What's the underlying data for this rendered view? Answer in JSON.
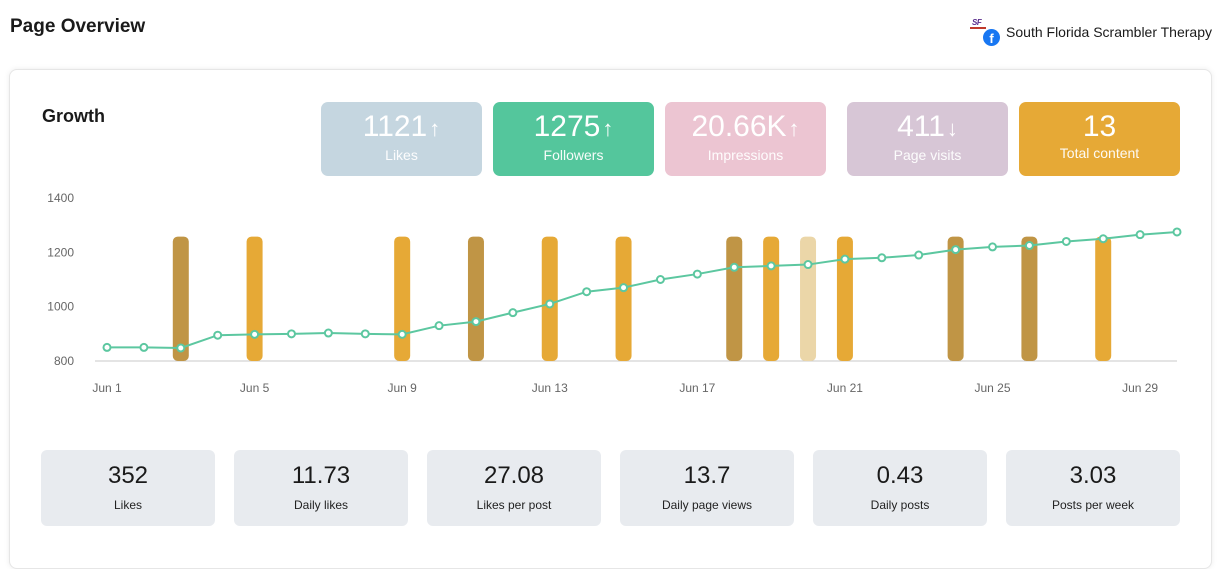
{
  "header": {
    "title": "Page Overview",
    "account_name": "South Florida Scrambler Therapy",
    "account_logo_text": "SF",
    "fb_icon_glyph": "f"
  },
  "growth": {
    "title": "Growth",
    "kpis": [
      {
        "value": "1121",
        "arrow": "↑",
        "label": "Likes",
        "color": "#c5d6e0"
      },
      {
        "value": "1275",
        "arrow": "↑",
        "label": "Followers",
        "color": "#54c69c"
      },
      {
        "value": "20.66K",
        "arrow": "↑",
        "label": "Impressions",
        "color": "#ecc5d2"
      },
      {
        "value": "411",
        "arrow": "↓",
        "label": "Page visits",
        "color": "#d7c6d6"
      },
      {
        "value": "13",
        "arrow": "",
        "label": "Total content",
        "color": "#e6a936"
      }
    ]
  },
  "chart_data": {
    "type": "line",
    "ylim": [
      800,
      1400
    ],
    "yticks": [
      800,
      1000,
      1200,
      1400
    ],
    "ytick_labels": [
      "800",
      "1000",
      "1200",
      "1400"
    ],
    "xtick_labels": [
      "Jun 1",
      "Jun 5",
      "Jun 9",
      "Jun 13",
      "Jun 17",
      "Jun 21",
      "Jun 25",
      "Jun 29"
    ],
    "xtick_days": [
      1,
      5,
      9,
      13,
      17,
      21,
      25,
      29
    ],
    "x_days": [
      1,
      2,
      3,
      4,
      5,
      6,
      7,
      8,
      9,
      10,
      11,
      12,
      13,
      14,
      15,
      16,
      17,
      18,
      19,
      20,
      21,
      22,
      23,
      24,
      25,
      26,
      27,
      28,
      29,
      30
    ],
    "series": [
      {
        "values": [
          850,
          850,
          848,
          895,
          898,
          900,
          903,
          900,
          898,
          930,
          945,
          978,
          1010,
          1055,
          1070,
          1100,
          1120,
          1145,
          1150,
          1155,
          1175,
          1180,
          1190,
          1210,
          1220,
          1225,
          1240,
          1250,
          1265,
          1275
        ],
        "color": "#5cc7a0"
      }
    ],
    "post_bars": [
      {
        "day": 3,
        "color": "#c09545"
      },
      {
        "day": 5,
        "color": "#e6a936"
      },
      {
        "day": 9,
        "color": "#e6a936"
      },
      {
        "day": 11,
        "color": "#c09545"
      },
      {
        "day": 13,
        "color": "#e6a936"
      },
      {
        "day": 15,
        "color": "#e6a936"
      },
      {
        "day": 18,
        "color": "#c09545"
      },
      {
        "day": 19,
        "color": "#e6a936"
      },
      {
        "day": 20,
        "color": "#ebd6a8"
      },
      {
        "day": 21,
        "color": "#e6a936"
      },
      {
        "day": 24,
        "color": "#c09545"
      },
      {
        "day": 26,
        "color": "#c09545"
      },
      {
        "day": 28,
        "color": "#e6a936"
      }
    ],
    "grid": false
  },
  "stats": [
    {
      "value": "352",
      "label": "Likes"
    },
    {
      "value": "11.73",
      "label": "Daily likes"
    },
    {
      "value": "27.08",
      "label": "Likes per post"
    },
    {
      "value": "13.7",
      "label": "Daily page views"
    },
    {
      "value": "0.43",
      "label": "Daily posts"
    },
    {
      "value": "3.03",
      "label": "Posts per week"
    }
  ]
}
